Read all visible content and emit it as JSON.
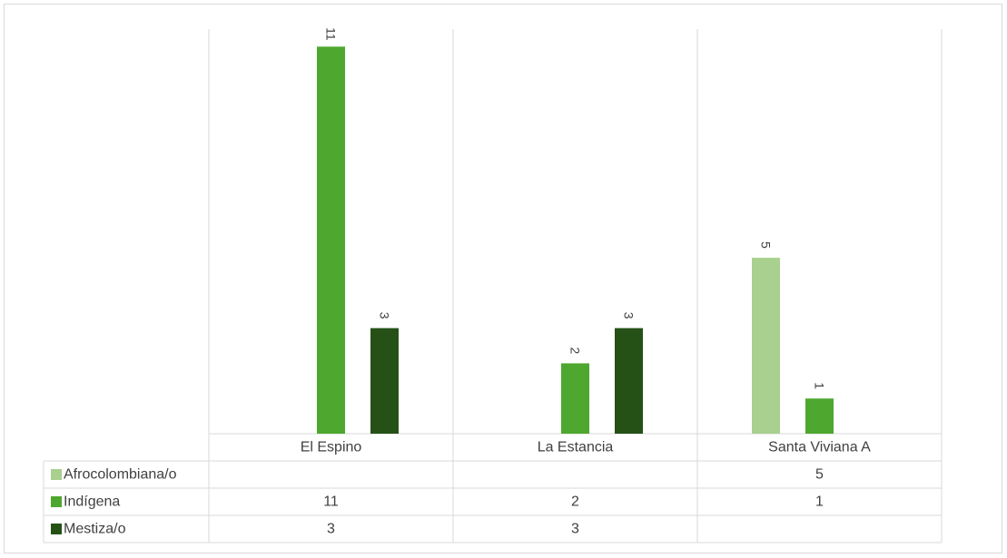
{
  "chart_data": {
    "type": "bar",
    "categories": [
      "El Espino",
      "La Estancia",
      "Santa Viviana A"
    ],
    "series": [
      {
        "name": "Afrocolombiana/o",
        "color": "#a9d08e",
        "values": [
          null,
          null,
          5
        ]
      },
      {
        "name": "Indígena",
        "color": "#4ea72e",
        "values": [
          11,
          2,
          1
        ]
      },
      {
        "name": "Mestiza/o",
        "color": "#255117",
        "values": [
          3,
          3,
          null
        ]
      }
    ],
    "ylim": [
      0,
      11.5
    ],
    "grid": false,
    "data_labels": "rotated",
    "data_table": true,
    "title": "",
    "xlabel": "",
    "ylabel": ""
  }
}
